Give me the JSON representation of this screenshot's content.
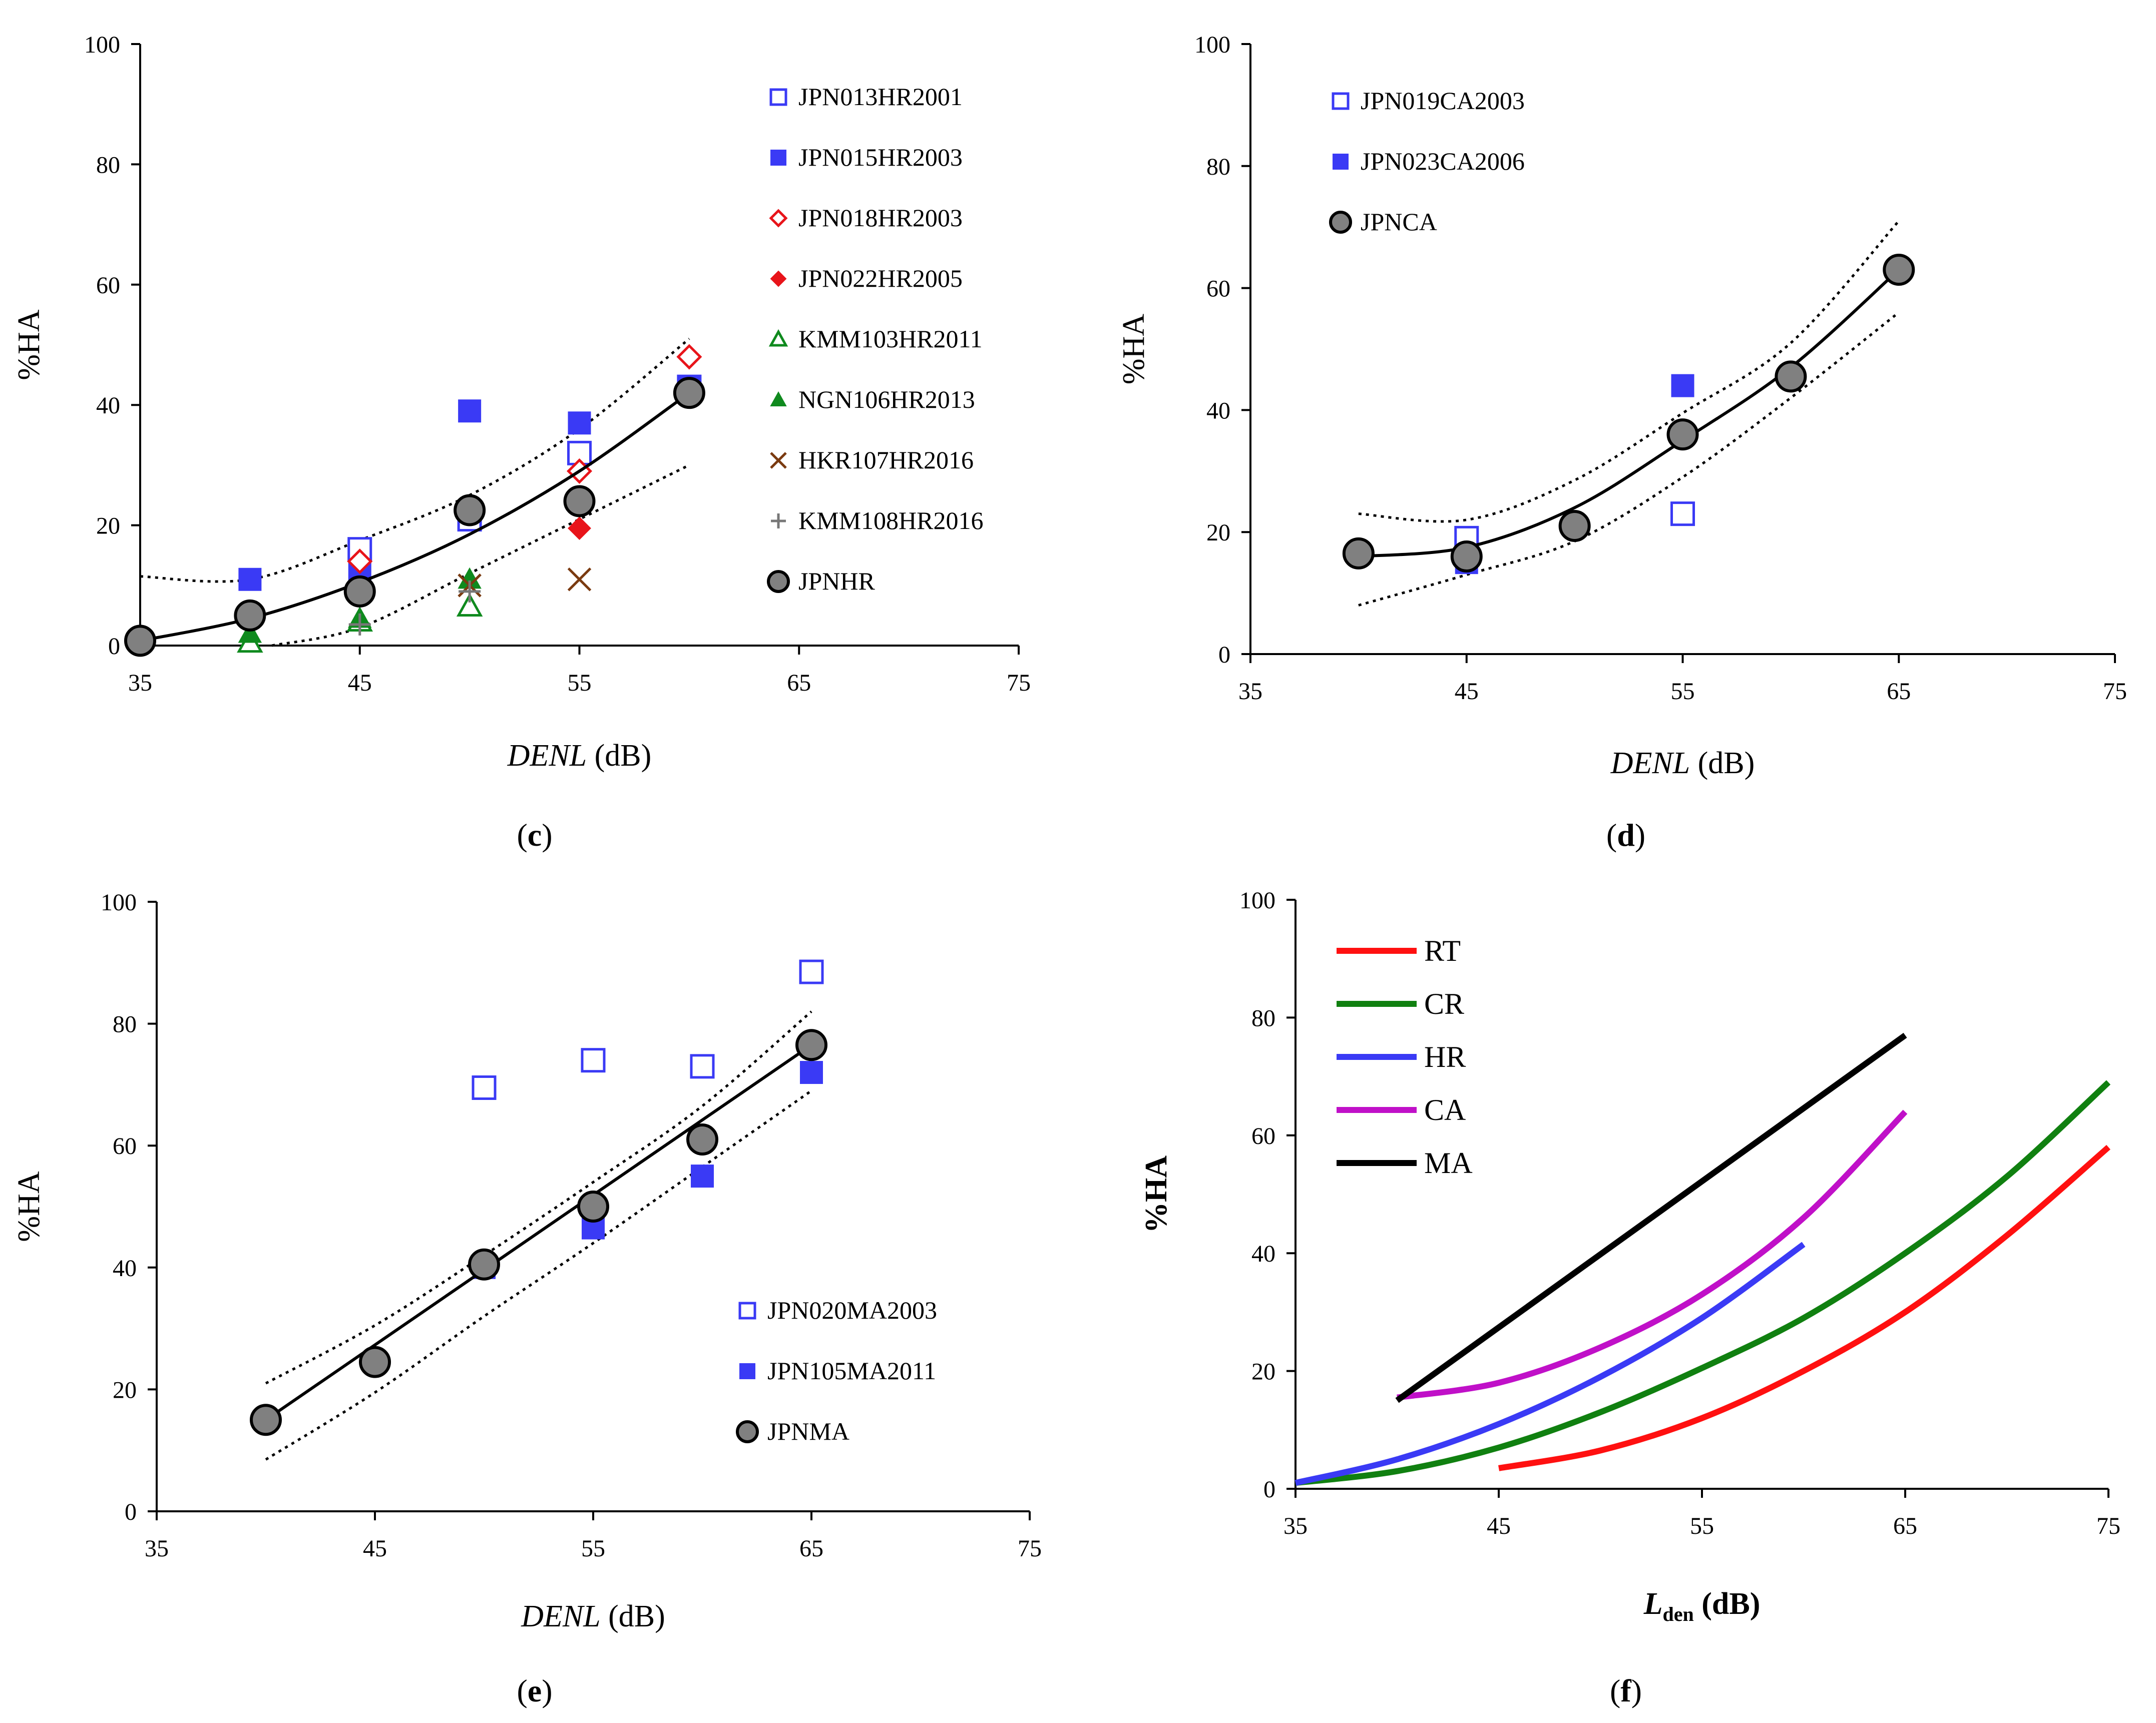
{
  "chart_data": [
    {
      "id": "c",
      "type": "scatter",
      "panel_label": "c",
      "xlabel_italic": "DENL",
      "xlabel_unit": " (dB)",
      "ylabel": "%HA",
      "xlim": [
        35,
        75
      ],
      "ylim": [
        0,
        100
      ],
      "xticks": [
        "35",
        "45",
        "55",
        "65",
        "75"
      ],
      "yticks": [
        "0",
        "20",
        "40",
        "60",
        "80",
        "100"
      ],
      "series": [
        {
          "name": "JPN013HR2001",
          "marker": "square-open",
          "color": "#3a3af5",
          "points": [
            [
              45,
              16
            ],
            [
              50,
              21
            ],
            [
              55,
              32
            ],
            [
              60,
              43
            ]
          ]
        },
        {
          "name": "JPN015HR2003",
          "marker": "square-filled",
          "color": "#3a3af5",
          "points": [
            [
              40,
              11
            ],
            [
              45,
              12
            ],
            [
              50,
              39
            ],
            [
              55,
              37
            ],
            [
              60,
              43
            ]
          ]
        },
        {
          "name": "JPN018HR2003",
          "marker": "diamond-open",
          "color": "#e8141a",
          "points": [
            [
              45,
              14
            ],
            [
              55,
              29
            ],
            [
              60,
              48
            ]
          ]
        },
        {
          "name": "JPN022HR2005",
          "marker": "diamond-filled",
          "color": "#e8141a",
          "points": [
            [
              55,
              19.5
            ]
          ]
        },
        {
          "name": "KMM103HR2011",
          "marker": "triangle-open",
          "color": "#0f8a1e",
          "points": [
            [
              40,
              0.5
            ],
            [
              45,
              4
            ],
            [
              50,
              6.5
            ]
          ]
        },
        {
          "name": "NGN106HR2013",
          "marker": "triangle-filled",
          "color": "#0f8a1e",
          "points": [
            [
              40,
              2
            ],
            [
              45,
              4.5
            ],
            [
              50,
              11
            ]
          ]
        },
        {
          "name": "HKR107HR2016",
          "marker": "x",
          "color": "#7a3a10",
          "points": [
            [
              50,
              10
            ],
            [
              55,
              11
            ]
          ]
        },
        {
          "name": "KMM108HR2016",
          "marker": "plus",
          "color": "#777777",
          "points": [
            [
              45,
              3.5
            ],
            [
              50,
              9
            ]
          ]
        },
        {
          "name": "JPNHR",
          "marker": "circle-gray",
          "color": "#808080",
          "points": [
            [
              35,
              0.8
            ],
            [
              40,
              5
            ],
            [
              45,
              9
            ],
            [
              50,
              22.5
            ],
            [
              55,
              24
            ],
            [
              60,
              42
            ]
          ]
        }
      ],
      "fit": {
        "x": [
          35,
          40,
          45,
          50,
          55,
          60
        ],
        "y": [
          0.8,
          4.5,
          10.5,
          18.5,
          29,
          42
        ]
      },
      "ci_upper": {
        "x": [
          35,
          40,
          45,
          50,
          55,
          60
        ],
        "y": [
          11.5,
          11,
          17.5,
          25,
          36,
          51
        ]
      },
      "ci_lower": {
        "x": [
          41,
          45,
          50,
          55,
          60
        ],
        "y": [
          0,
          3,
          12,
          21,
          30
        ]
      }
    },
    {
      "id": "d",
      "type": "scatter",
      "panel_label": "d",
      "xlabel_italic": "DENL",
      "xlabel_unit": " (dB)",
      "ylabel": "%HA",
      "xlim": [
        35,
        75
      ],
      "ylim": [
        0,
        100
      ],
      "xticks": [
        "35",
        "45",
        "55",
        "65",
        "75"
      ],
      "yticks": [
        "0",
        "20",
        "40",
        "60",
        "80",
        "100"
      ],
      "series": [
        {
          "name": "JPN019CA2003",
          "marker": "square-open",
          "color": "#3a3af5",
          "points": [
            [
              45,
              19
            ],
            [
              55,
              23
            ]
          ]
        },
        {
          "name": "JPN023CA2006",
          "marker": "square-filled",
          "color": "#3a3af5",
          "points": [
            [
              45,
              15
            ],
            [
              55,
              44
            ]
          ]
        },
        {
          "name": "JPNCA",
          "marker": "circle-gray",
          "color": "#808080",
          "points": [
            [
              40,
              16.5
            ],
            [
              45,
              16
            ],
            [
              50,
              21
            ],
            [
              55,
              36
            ],
            [
              60,
              45.5
            ],
            [
              65,
              63
            ]
          ]
        }
      ],
      "fit": {
        "x": [
          40,
          45,
          50,
          55,
          60,
          65
        ],
        "y": [
          16,
          17.5,
          24,
          35,
          47,
          63
        ]
      },
      "ci_upper": {
        "x": [
          40,
          45,
          50,
          55,
          60,
          65
        ],
        "y": [
          23,
          22,
          28.5,
          39.5,
          51,
          71
        ]
      },
      "ci_lower": {
        "x": [
          40,
          45,
          50,
          55,
          60,
          65
        ],
        "y": [
          8,
          13,
          18.5,
          29,
          42,
          56
        ]
      }
    },
    {
      "id": "e",
      "type": "scatter",
      "panel_label": "e",
      "xlabel_italic": "DENL",
      "xlabel_unit": " (dB)",
      "ylabel": "%HA",
      "xlim": [
        35,
        75
      ],
      "ylim": [
        0,
        100
      ],
      "xticks": [
        "35",
        "45",
        "55",
        "65",
        "75"
      ],
      "yticks": [
        "0",
        "20",
        "40",
        "60",
        "80",
        "100"
      ],
      "series": [
        {
          "name": "JPN020MA2003",
          "marker": "square-open",
          "color": "#3a3af5",
          "points": [
            [
              50,
              69.5
            ],
            [
              55,
              74
            ],
            [
              60,
              73
            ],
            [
              65,
              88.5
            ]
          ]
        },
        {
          "name": "JPN105MA2011",
          "marker": "square-filled",
          "color": "#3a3af5",
          "points": [
            [
              50,
              40
            ],
            [
              55,
              46.5
            ],
            [
              60,
              55
            ],
            [
              65,
              72
            ]
          ]
        },
        {
          "name": "JPNMA",
          "marker": "circle-gray",
          "color": "#808080",
          "points": [
            [
              40,
              15
            ],
            [
              45,
              24.5
            ],
            [
              50,
              40.5
            ],
            [
              55,
              50
            ],
            [
              60,
              61
            ],
            [
              65,
              76.5
            ]
          ]
        }
      ],
      "fit": {
        "x": [
          40,
          65
        ],
        "y": [
          15,
          76.5
        ]
      },
      "ci_upper": {
        "x": [
          40,
          45,
          50,
          55,
          60,
          65
        ],
        "y": [
          21,
          30.5,
          42,
          54,
          66.5,
          82
        ]
      },
      "ci_lower": {
        "x": [
          40,
          45,
          50,
          55,
          60,
          65
        ],
        "y": [
          8.5,
          19.5,
          32,
          44,
          56.5,
          69
        ]
      }
    },
    {
      "id": "f",
      "type": "line",
      "panel_label": "f",
      "xlabel_main": "L",
      "xlabel_sub": "den",
      "xlabel_unit": " (dB)",
      "ylabel": "%HA",
      "xlim": [
        35,
        75
      ],
      "ylim": [
        0,
        100
      ],
      "xticks": [
        "35",
        "45",
        "55",
        "65",
        "75"
      ],
      "yticks": [
        "0",
        "20",
        "40",
        "60",
        "80",
        "100"
      ],
      "series": [
        {
          "name": "RT",
          "color": "#ff1010",
          "x": [
            45,
            50,
            55,
            60,
            65,
            70,
            75
          ],
          "y": [
            3.5,
            6.5,
            12,
            20,
            30,
            43,
            58
          ]
        },
        {
          "name": "CR",
          "color": "#108010",
          "x": [
            35,
            40,
            45,
            50,
            55,
            60,
            65,
            70,
            75
          ],
          "y": [
            1,
            3,
            7,
            13,
            20.5,
            29,
            40,
            53,
            69
          ]
        },
        {
          "name": "HR",
          "color": "#3a3af5",
          "x": [
            35,
            40,
            45,
            50,
            55,
            60
          ],
          "y": [
            1,
            5,
            11,
            19,
            29,
            41.5
          ]
        },
        {
          "name": "CA",
          "color": "#c010c8",
          "x": [
            40,
            45,
            50,
            55,
            60,
            65
          ],
          "y": [
            15.5,
            18,
            24,
            33,
            46,
            64
          ]
        },
        {
          "name": "MA",
          "color": "#000000",
          "x": [
            40,
            65
          ],
          "y": [
            15,
            77
          ]
        }
      ]
    }
  ]
}
